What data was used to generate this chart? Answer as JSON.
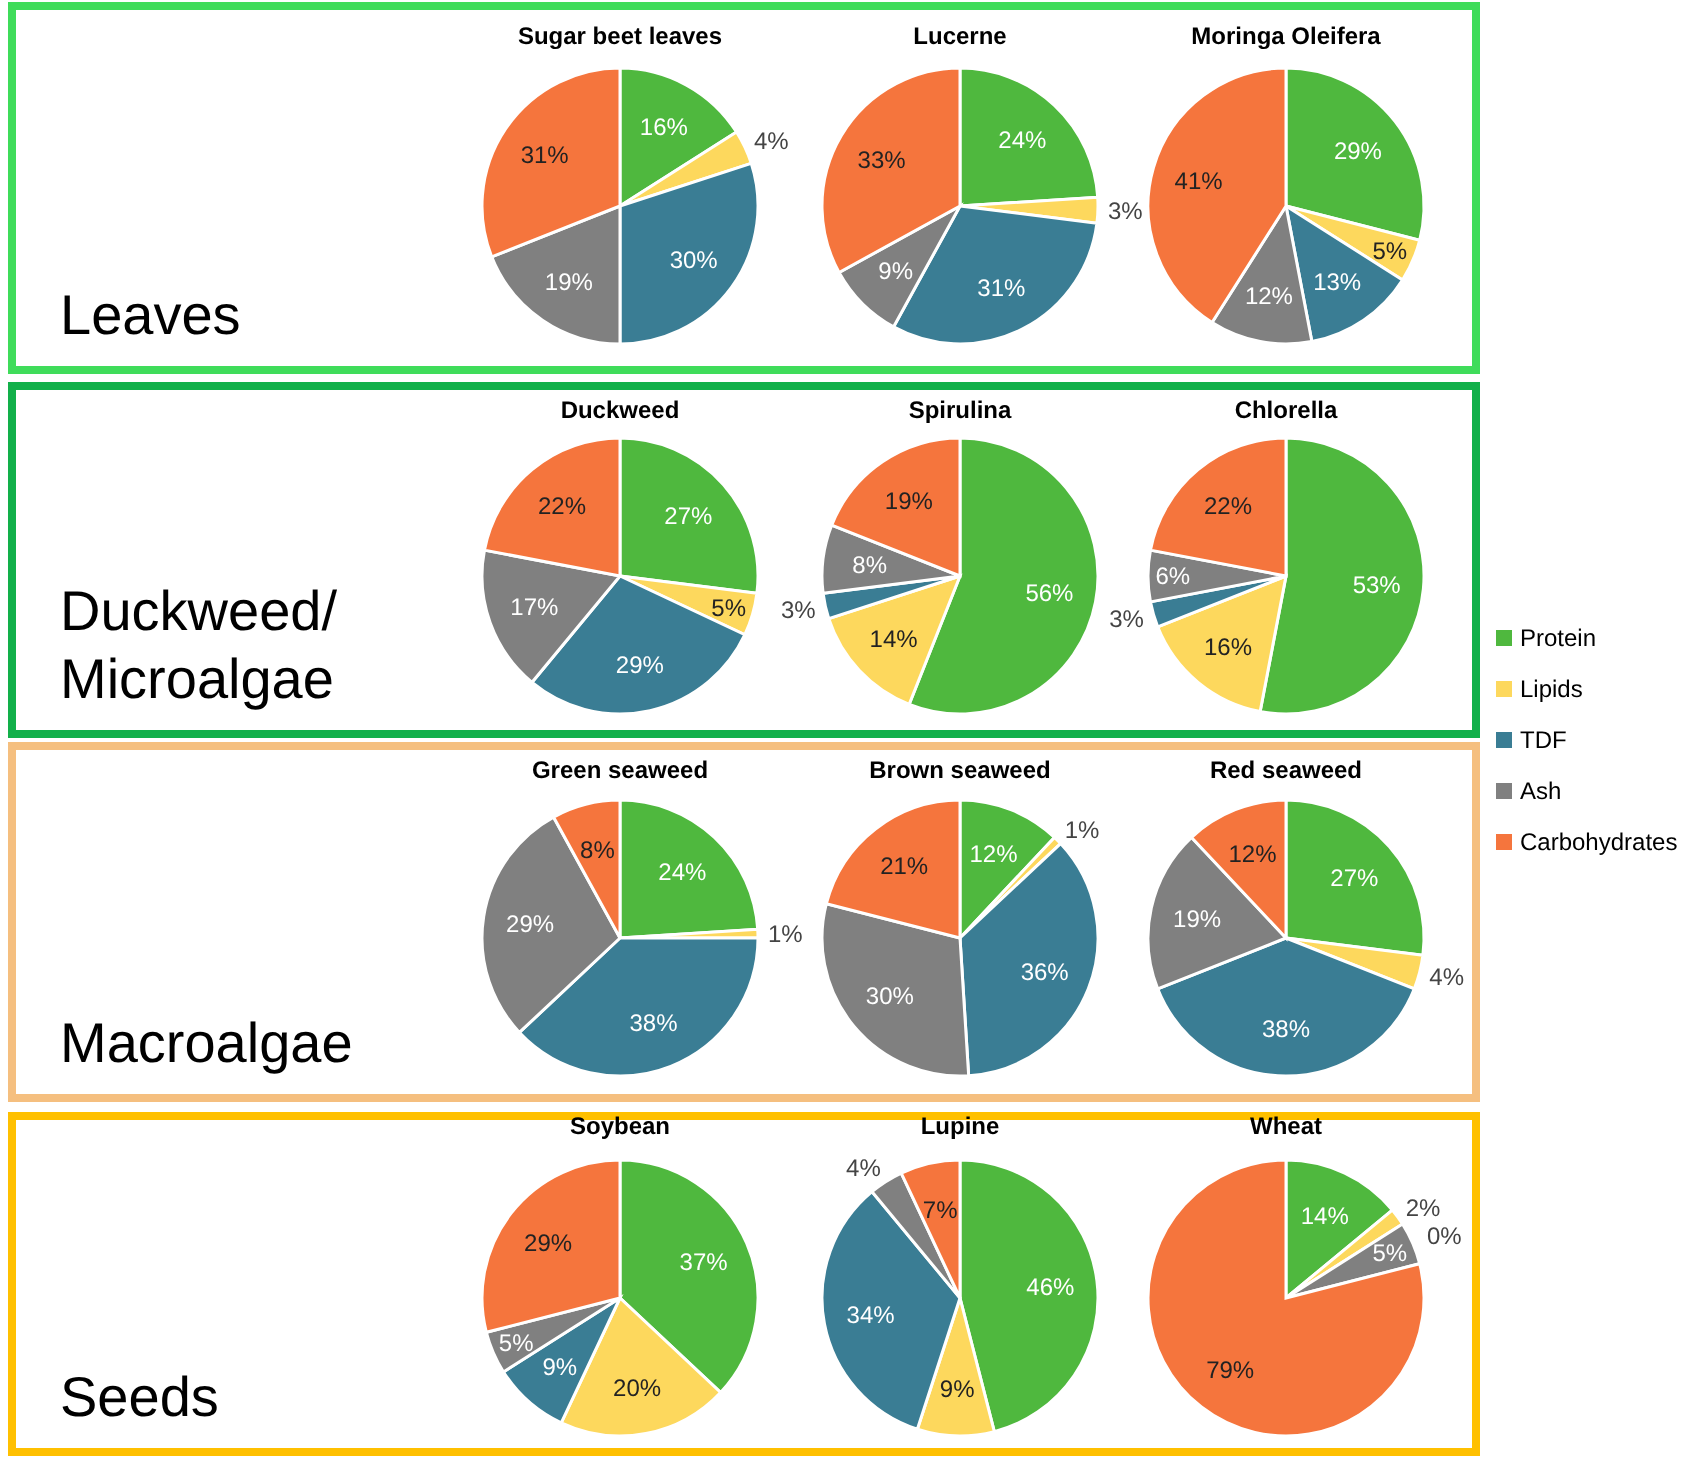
{
  "chart_data": [
    {
      "type": "other",
      "annotations": [
        "Leaves"
      ],
      "color": "#3fdc5a"
    },
    {
      "type": "pie",
      "title": "Sugar beet leaves",
      "categories": [
        null,
        null,
        null,
        null,
        null
      ],
      "values": [
        16,
        4,
        30,
        19,
        31
      ],
      "colors": [
        "#4fb83e",
        "#fdd85d",
        "#3a7d94",
        "#808080",
        "#f5753d"
      ],
      "value_labels": [
        "16%",
        "4%",
        "30%",
        "19%",
        "31%"
      ]
    },
    {
      "type": "pie",
      "title": "Lucerne",
      "categories": [
        null,
        null,
        null,
        null,
        null
      ],
      "values": [
        24,
        3,
        31,
        9,
        33
      ],
      "colors": [
        "#4fb83e",
        "#fdd85d",
        "#3a7d94",
        "#808080",
        "#f5753d"
      ],
      "value_labels": [
        "24%",
        "3%",
        "31%",
        "9%",
        "33%"
      ]
    },
    {
      "type": "pie",
      "title": "Moringa Oleifera",
      "categories": [
        null,
        null,
        null,
        null,
        null
      ],
      "values": [
        29,
        5,
        13,
        12,
        41
      ],
      "colors": [
        "#4fb83e",
        "#fdd85d",
        "#3a7d94",
        "#808080",
        "#f5753d"
      ],
      "value_labels": [
        "29%",
        "5%",
        "13%",
        "12%",
        "41%"
      ]
    },
    {
      "type": "other",
      "annotations": [
        "Duckweed/",
        "Microalgae"
      ],
      "color": "#12b04a"
    },
    {
      "type": "pie",
      "title": "Duckweed",
      "categories": [
        null,
        null,
        null,
        null,
        null
      ],
      "values": [
        27,
        5,
        29,
        17,
        22
      ],
      "colors": [
        "#4fb83e",
        "#fdd85d",
        "#3a7d94",
        "#808080",
        "#f5753d"
      ],
      "value_labels": [
        "27%",
        "5%",
        "29%",
        "17%",
        "22%"
      ]
    },
    {
      "type": "pie",
      "title": "Spirulina",
      "categories": [
        null,
        null,
        null,
        null,
        null
      ],
      "values": [
        56,
        14,
        3,
        8,
        19
      ],
      "colors": [
        "#4fb83e",
        "#fdd85d",
        "#3a7d94",
        "#808080",
        "#f5753d"
      ],
      "value_labels": [
        "56%",
        "14%",
        "3%",
        "8%",
        "19%"
      ]
    },
    {
      "type": "pie",
      "title": "Chlorella",
      "categories": [
        "Protein",
        "Lipids",
        "TDF",
        "Ash",
        "Carbohydrates"
      ],
      "values": [
        53,
        16,
        3,
        6,
        22
      ],
      "colors": [
        "#4fb83e",
        "#fdd85d",
        "#3a7d94",
        "#808080",
        "#f5753d"
      ],
      "value_labels": [
        "53%",
        "16%",
        "3%",
        "6%",
        "22%"
      ],
      "legend": "right"
    },
    {
      "type": "other",
      "annotations": [
        "Macroalgae"
      ],
      "color": "#f5bf7f"
    },
    {
      "type": "pie",
      "title": "Green seaweed",
      "categories": [
        null,
        null,
        null,
        null,
        null
      ],
      "values": [
        24,
        1,
        38,
        29,
        8
      ],
      "colors": [
        "#4fb83e",
        "#fdd85d",
        "#3a7d94",
        "#808080",
        "#f5753d"
      ],
      "value_labels": [
        "24%",
        "1%",
        "38%",
        "29%",
        "8%"
      ]
    },
    {
      "type": "pie",
      "title": "Brown seaweed",
      "categories": [
        null,
        null,
        null,
        null,
        null
      ],
      "values": [
        12,
        1,
        36,
        30,
        21
      ],
      "colors": [
        "#4fb83e",
        "#fdd85d",
        "#3a7d94",
        "#808080",
        "#f5753d"
      ],
      "value_labels": [
        "12%",
        "1%",
        "36%",
        "30%",
        "21%"
      ]
    },
    {
      "type": "pie",
      "title": "Red seaweed",
      "categories": [
        null,
        null,
        null,
        null,
        null
      ],
      "values": [
        27,
        4,
        38,
        19,
        12
      ],
      "colors": [
        "#4fb83e",
        "#fdd85d",
        "#3a7d94",
        "#808080",
        "#f5753d"
      ],
      "value_labels": [
        "27%",
        "4%",
        "38%",
        "19%",
        "12%"
      ]
    },
    {
      "type": "other",
      "annotations": [
        "Seeds"
      ],
      "color": "#ffc000"
    },
    {
      "type": "pie",
      "title": "Soybean",
      "categories": [
        null,
        null,
        null,
        null,
        null
      ],
      "values": [
        37,
        20,
        9,
        5,
        29
      ],
      "colors": [
        "#4fb83e",
        "#fdd85d",
        "#3a7d94",
        "#808080",
        "#f5753d"
      ],
      "value_labels": [
        "37%",
        "20%",
        "9%",
        "5%",
        "29%"
      ]
    },
    {
      "type": "pie",
      "title": "Lupine",
      "categories": [
        null,
        null,
        null,
        null,
        null
      ],
      "values": [
        46,
        9,
        34,
        4,
        7
      ],
      "colors": [
        "#4fb83e",
        "#fdd85d",
        "#3a7d94",
        "#808080",
        "#f5753d"
      ],
      "value_labels": [
        "46%",
        "9%",
        "34%",
        "4%",
        "7%"
      ]
    },
    {
      "type": "pie",
      "title": "Wheat",
      "categories": [
        null,
        null,
        null,
        null,
        null
      ],
      "values": [
        14,
        2,
        0,
        5,
        79
      ],
      "colors": [
        "#4fb83e",
        "#fdd85d",
        "#3a7d94",
        "#808080",
        "#f5753d"
      ],
      "value_labels": [
        "14%",
        "2%",
        "0%",
        "5%",
        "79%"
      ]
    }
  ]
}
